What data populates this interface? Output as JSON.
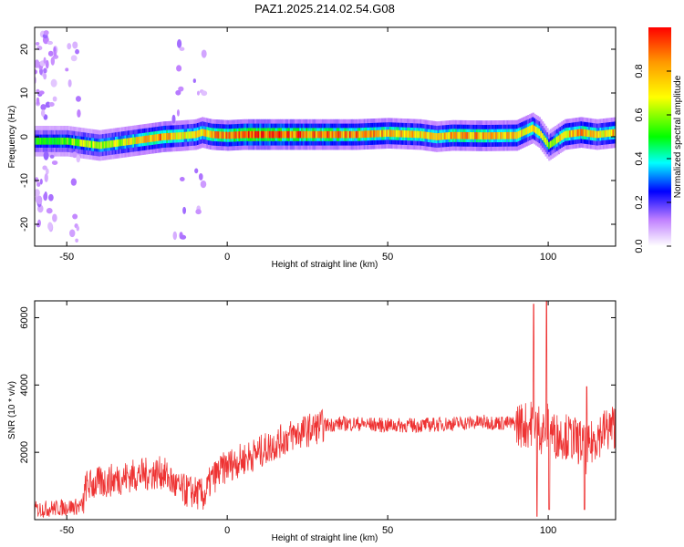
{
  "title": "PAZ1.2025.214.02.54.G08",
  "chart_data": [
    {
      "type": "heatmap",
      "xlabel": "Height of straight line (km)",
      "ylabel": "Frequency (Hz)",
      "xlim": [
        -60,
        121
      ],
      "ylim": [
        -25,
        25
      ],
      "xticks": [
        -50,
        0,
        50,
        100
      ],
      "yticks": [
        -20,
        -10,
        0,
        10,
        20
      ],
      "colorbar": {
        "label": "Normalized spectral amplitude",
        "range": [
          0,
          1
        ],
        "ticks": [
          0.0,
          0.2,
          0.4,
          0.6,
          0.8
        ],
        "colors": [
          "#ffffff",
          "#8800ff",
          "#0000ff",
          "#00ffff",
          "#00ff00",
          "#ffff00",
          "#ff0000"
        ]
      },
      "ridge": {
        "x": [
          -60,
          -50,
          -45,
          -40,
          -35,
          -30,
          -25,
          -20,
          -15,
          -10,
          -8,
          -5,
          0,
          5,
          10,
          20,
          30,
          40,
          50,
          60,
          65,
          70,
          80,
          90,
          95,
          97,
          100,
          105,
          110,
          115,
          121
        ],
        "freq": [
          -1,
          -1,
          -1.5,
          -2,
          -1.5,
          -1,
          -0.5,
          0,
          0.2,
          0.5,
          1,
          0.5,
          0.3,
          0.5,
          0.5,
          0.5,
          0.5,
          0.5,
          0.8,
          0.5,
          0,
          0.3,
          0.2,
          0.3,
          2,
          1,
          -2,
          0.5,
          1,
          0.5,
          1
        ],
        "amp": [
          0.5,
          0.55,
          0.6,
          0.6,
          0.65,
          0.7,
          0.75,
          0.85,
          0.7,
          0.7,
          0.75,
          0.8,
          0.85,
          0.95,
          0.95,
          0.9,
          0.85,
          0.85,
          0.8,
          0.75,
          0.7,
          0.8,
          0.8,
          0.75,
          0.7,
          0.65,
          0.55,
          0.75,
          0.8,
          0.7,
          0.8
        ]
      }
    },
    {
      "type": "line",
      "xlabel": "Height of straight line (km)",
      "ylabel": "SNR (10 * v/v)",
      "xlim": [
        -60,
        121
      ],
      "ylim": [
        0,
        6500
      ],
      "xticks": [
        -50,
        0,
        50,
        100
      ],
      "yticks": [
        2000,
        4000,
        6000
      ],
      "color": "#ee3333",
      "trend": {
        "x": [
          -60,
          -45,
          -44,
          -30,
          -20,
          -15,
          -10,
          -7,
          -5,
          0,
          10,
          20,
          30,
          35,
          40,
          50,
          60,
          70,
          80,
          90,
          94,
          96,
          98,
          100,
          102,
          105,
          110,
          112,
          115,
          121
        ],
        "y": [
          300,
          400,
          1000,
          1300,
          1400,
          900,
          800,
          700,
          1200,
          1600,
          2000,
          2500,
          2800,
          2850,
          2850,
          2800,
          2800,
          2850,
          2900,
          2850,
          2800,
          3000,
          2600,
          2800,
          2500,
          2500,
          2300,
          2000,
          2500,
          2800
        ]
      },
      "spikes": [
        {
          "x": 95.5,
          "y": 6400
        },
        {
          "x": 96.5,
          "y": 100
        },
        {
          "x": 99.5,
          "y": 6500
        },
        {
          "x": 100.3,
          "y": 300
        },
        {
          "x": 111.3,
          "y": 300
        },
        {
          "x": 112.0,
          "y": 3950
        }
      ]
    }
  ]
}
